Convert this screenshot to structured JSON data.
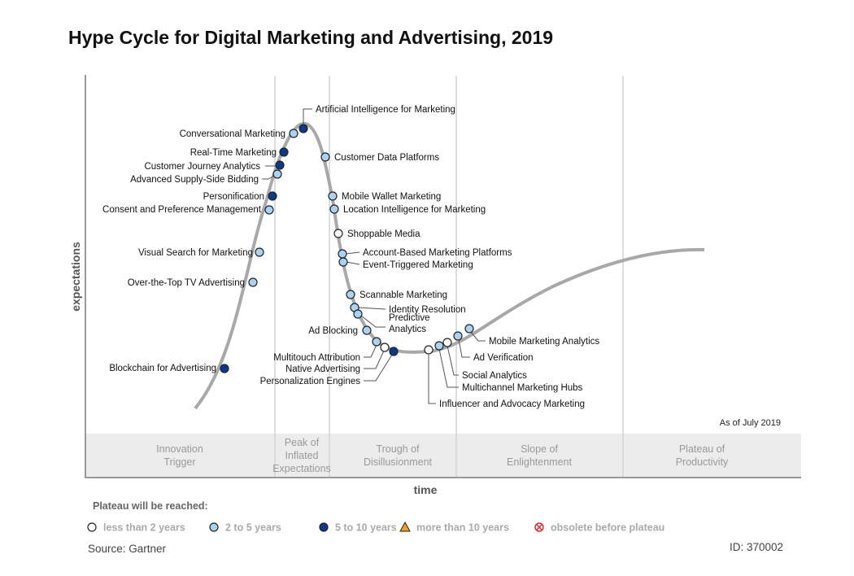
{
  "title": "Hype Cycle for Digital Marketing and Advertising, 2019",
  "y_axis_label": "expectations",
  "x_axis_label": "time",
  "as_of": "As of July 2019",
  "phases": [
    {
      "lines": [
        "Innovation",
        "Trigger"
      ]
    },
    {
      "lines": [
        "Peak of",
        "Inflated",
        "Expectations"
      ]
    },
    {
      "lines": [
        "Trough of",
        "Disillusionment"
      ]
    },
    {
      "lines": [
        "Slope of",
        "Enlightenment"
      ]
    },
    {
      "lines": [
        "Plateau of",
        "Productivity"
      ]
    }
  ],
  "legend": {
    "title": "Plateau will be reached:",
    "items": [
      {
        "label": "less than 2 years",
        "color": "#ffffff",
        "shape": "circle"
      },
      {
        "label": "2 to 5 years",
        "color": "#a9d3f5",
        "shape": "circle"
      },
      {
        "label": "5 to 10 years",
        "color": "#0a3a8c",
        "shape": "circle"
      },
      {
        "label": "more than 10 years",
        "color": "#f0a020",
        "shape": "triangle"
      },
      {
        "label": "obsolete before plateau",
        "color": "#e03030",
        "shape": "crossed-circle"
      }
    ]
  },
  "technologies": [
    {
      "name": "Artificial Intelligence for Marketing",
      "plateau": "5 to 10 years"
    },
    {
      "name": "Conversational Marketing",
      "plateau": "2 to 5 years"
    },
    {
      "name": "Real-Time Marketing",
      "plateau": "5 to 10 years"
    },
    {
      "name": "Customer Journey Analytics",
      "plateau": "5 to 10 years"
    },
    {
      "name": "Advanced Supply-Side Bidding",
      "plateau": "2 to 5 years"
    },
    {
      "name": "Personification",
      "plateau": "5 to 10 years"
    },
    {
      "name": "Consent and Preference Management",
      "plateau": "2 to 5 years"
    },
    {
      "name": "Visual Search for Marketing",
      "plateau": "2 to 5 years"
    },
    {
      "name": "Over-the-Top TV Advertising",
      "plateau": "2 to 5 years"
    },
    {
      "name": "Blockchain for Advertising",
      "plateau": "5 to 10 years"
    },
    {
      "name": "Customer Data Platforms",
      "plateau": "2 to 5 years"
    },
    {
      "name": "Mobile Wallet Marketing",
      "plateau": "2 to 5 years"
    },
    {
      "name": "Location Intelligence for Marketing",
      "plateau": "2 to 5 years"
    },
    {
      "name": "Shoppable Media",
      "plateau": "less than 2 years"
    },
    {
      "name": "Account-Based Marketing Platforms",
      "plateau": "2 to 5 years"
    },
    {
      "name": "Event-Triggered Marketing",
      "plateau": "2 to 5 years"
    },
    {
      "name": "Scannable Marketing",
      "plateau": "2 to 5 years"
    },
    {
      "name": "Identity Resolution",
      "plateau": "2 to 5 years"
    },
    {
      "name": "Predictive Analytics",
      "plateau": "2 to 5 years"
    },
    {
      "name": "Ad Blocking",
      "plateau": "2 to 5 years"
    },
    {
      "name": "Multitouch Attribution",
      "plateau": "2 to 5 years"
    },
    {
      "name": "Native Advertising",
      "plateau": "less than 2 years"
    },
    {
      "name": "Personalization Engines",
      "plateau": "5 to 10 years"
    },
    {
      "name": "Influencer and Advocacy Marketing",
      "plateau": "less than 2 years"
    },
    {
      "name": "Multichannel Marketing Hubs",
      "plateau": "2 to 5 years"
    },
    {
      "name": "Social Analytics",
      "plateau": "less than 2 years"
    },
    {
      "name": "Ad Verification",
      "plateau": "2 to 5 years"
    },
    {
      "name": "Mobile Marketing Analytics",
      "plateau": "2 to 5 years"
    }
  ],
  "source": "Source: Gartner",
  "id": "ID: 370002"
}
